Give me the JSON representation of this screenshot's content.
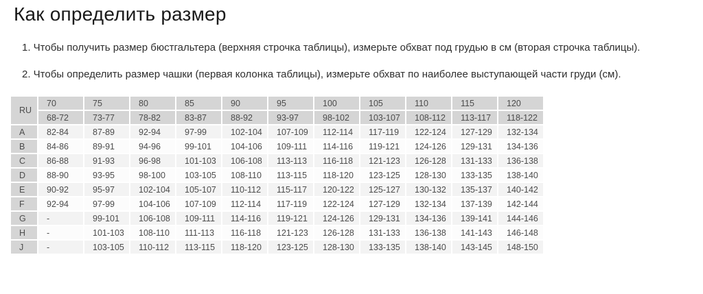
{
  "page": {
    "title": "Как определить размер",
    "instructions": [
      "1. Чтобы получить размер бюстгальтера (верхняя строчка таблицы), измерьте обхват под грудью в см (вторая строчка таблицы).",
      "2. Чтобы определить размер чашки (первая колонка таблицы), измерьте обхват по наиболее выступающей части груди (см)."
    ]
  },
  "table": {
    "corner_label": "RU",
    "band_sizes": [
      "70",
      "75",
      "80",
      "85",
      "90",
      "95",
      "100",
      "105",
      "110",
      "115",
      "120"
    ],
    "underbust_ranges": [
      "68-72",
      "73-77",
      "78-82",
      "83-87",
      "88-92",
      "93-97",
      "98-102",
      "103-107",
      "108-112",
      "113-117",
      "118-122"
    ],
    "cup_rows": [
      {
        "cup": "A",
        "values": [
          "82-84",
          "87-89",
          "92-94",
          "97-99",
          "102-104",
          "107-109",
          "112-114",
          "117-119",
          "122-124",
          "127-129",
          "132-134"
        ]
      },
      {
        "cup": "B",
        "values": [
          "84-86",
          "89-91",
          "94-96",
          "99-101",
          "104-106",
          "109-111",
          "114-116",
          "119-121",
          "124-126",
          "129-131",
          "134-136"
        ]
      },
      {
        "cup": "C",
        "values": [
          "86-88",
          "91-93",
          "96-98",
          "101-103",
          "106-108",
          "113-113",
          "116-118",
          "121-123",
          "126-128",
          "131-133",
          "136-138"
        ]
      },
      {
        "cup": "D",
        "values": [
          "88-90",
          "93-95",
          "98-100",
          "103-105",
          "108-110",
          "113-115",
          "118-120",
          "123-125",
          "128-130",
          "133-135",
          "138-140"
        ]
      },
      {
        "cup": "E",
        "values": [
          "90-92",
          "95-97",
          "102-104",
          "105-107",
          "110-112",
          "115-117",
          "120-122",
          "125-127",
          "130-132",
          "135-137",
          "140-142"
        ]
      },
      {
        "cup": "F",
        "values": [
          "92-94",
          "97-99",
          "104-106",
          "107-109",
          "112-114",
          "117-119",
          "122-124",
          "127-129",
          "132-134",
          "137-139",
          "142-144"
        ]
      },
      {
        "cup": "G",
        "values": [
          "-",
          "99-101",
          "106-108",
          "109-111",
          "114-116",
          "119-121",
          "124-126",
          "129-131",
          "134-136",
          "139-141",
          "144-146"
        ]
      },
      {
        "cup": "H",
        "values": [
          "-",
          "101-103",
          "108-110",
          "111-113",
          "116-118",
          "121-123",
          "126-128",
          "131-133",
          "136-138",
          "141-143",
          "146-148"
        ]
      },
      {
        "cup": "J",
        "values": [
          "-",
          "103-105",
          "110-112",
          "113-115",
          "118-120",
          "123-125",
          "128-130",
          "133-135",
          "138-140",
          "143-145",
          "148-150"
        ]
      }
    ]
  },
  "colors": {
    "page_bg": "#ffffff",
    "header_cell_bg": "#d5d5d5",
    "row_stripe_dark": "#f3f3f3",
    "row_stripe_light": "#fcfcfc",
    "title_text": "#1a1a1a",
    "body_text": "#2e2e2e",
    "table_text": "#4c4c4c"
  }
}
